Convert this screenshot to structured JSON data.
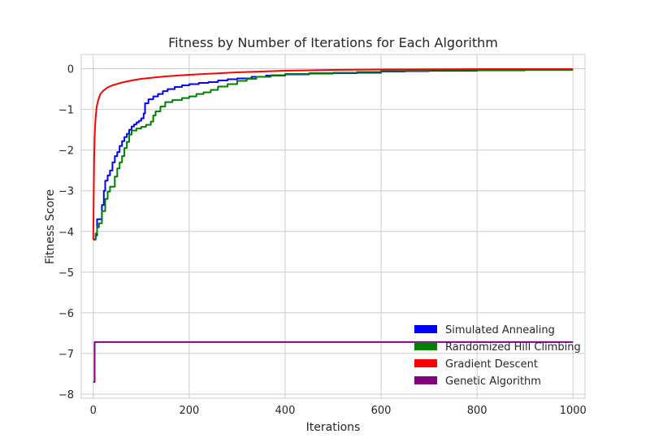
{
  "chart_data": {
    "type": "line",
    "title": "Fitness by Number of Iterations for Each Algorithm",
    "xlabel": "Iterations",
    "ylabel": "Fitness Score",
    "xlim": [
      -25,
      1025
    ],
    "ylim": [
      -8.1,
      0.35
    ],
    "xticks": [
      0,
      200,
      400,
      600,
      800,
      1000
    ],
    "yticks": [
      0,
      -1,
      -2,
      -3,
      -4,
      -5,
      -6,
      -7,
      -8
    ],
    "xtick_labels": [
      "0",
      "200",
      "400",
      "600",
      "800",
      "1000"
    ],
    "ytick_labels": [
      "0",
      "−1",
      "−2",
      "−3",
      "−4",
      "−5",
      "−6",
      "−7",
      "−8"
    ],
    "grid": true,
    "legend_position": "lower-right",
    "series": [
      {
        "name": "Simulated Annealing",
        "color": "#0000ff",
        "step": true,
        "points": [
          [
            0,
            -4.2
          ],
          [
            5,
            -4.1
          ],
          [
            8,
            -3.7
          ],
          [
            15,
            -3.7
          ],
          [
            18,
            -3.35
          ],
          [
            22,
            -3.0
          ],
          [
            25,
            -2.75
          ],
          [
            30,
            -2.62
          ],
          [
            35,
            -2.5
          ],
          [
            40,
            -2.3
          ],
          [
            45,
            -2.15
          ],
          [
            50,
            -2.05
          ],
          [
            55,
            -1.9
          ],
          [
            60,
            -1.78
          ],
          [
            65,
            -1.68
          ],
          [
            70,
            -1.6
          ],
          [
            75,
            -1.5
          ],
          [
            80,
            -1.42
          ],
          [
            85,
            -1.37
          ],
          [
            90,
            -1.32
          ],
          [
            95,
            -1.28
          ],
          [
            100,
            -1.22
          ],
          [
            105,
            -1.1
          ],
          [
            108,
            -0.85
          ],
          [
            115,
            -0.75
          ],
          [
            125,
            -0.68
          ],
          [
            135,
            -0.62
          ],
          [
            145,
            -0.55
          ],
          [
            155,
            -0.5
          ],
          [
            170,
            -0.45
          ],
          [
            185,
            -0.41
          ],
          [
            200,
            -0.38
          ],
          [
            220,
            -0.35
          ],
          [
            240,
            -0.33
          ],
          [
            260,
            -0.29
          ],
          [
            280,
            -0.26
          ],
          [
            300,
            -0.24
          ],
          [
            330,
            -0.2
          ],
          [
            360,
            -0.17
          ],
          [
            400,
            -0.14
          ],
          [
            450,
            -0.12
          ],
          [
            500,
            -0.11
          ],
          [
            550,
            -0.1
          ],
          [
            600,
            -0.07
          ],
          [
            650,
            -0.06
          ],
          [
            700,
            -0.05
          ],
          [
            800,
            -0.04
          ],
          [
            900,
            -0.03
          ],
          [
            1000,
            -0.03
          ]
        ]
      },
      {
        "name": "Randomized Hill Climbing",
        "color": "#008000",
        "step": true,
        "points": [
          [
            0,
            -4.2
          ],
          [
            5,
            -4.05
          ],
          [
            8,
            -3.9
          ],
          [
            12,
            -3.8
          ],
          [
            18,
            -3.5
          ],
          [
            25,
            -3.2
          ],
          [
            30,
            -3.02
          ],
          [
            35,
            -2.9
          ],
          [
            45,
            -2.65
          ],
          [
            50,
            -2.45
          ],
          [
            55,
            -2.3
          ],
          [
            60,
            -2.15
          ],
          [
            65,
            -1.95
          ],
          [
            70,
            -1.8
          ],
          [
            75,
            -1.62
          ],
          [
            80,
            -1.52
          ],
          [
            90,
            -1.47
          ],
          [
            100,
            -1.43
          ],
          [
            110,
            -1.38
          ],
          [
            120,
            -1.3
          ],
          [
            125,
            -1.15
          ],
          [
            130,
            -1.05
          ],
          [
            140,
            -0.93
          ],
          [
            150,
            -0.82
          ],
          [
            165,
            -0.77
          ],
          [
            185,
            -0.72
          ],
          [
            200,
            -0.68
          ],
          [
            215,
            -0.62
          ],
          [
            230,
            -0.58
          ],
          [
            245,
            -0.52
          ],
          [
            260,
            -0.44
          ],
          [
            280,
            -0.38
          ],
          [
            300,
            -0.3
          ],
          [
            320,
            -0.25
          ],
          [
            340,
            -0.2
          ],
          [
            370,
            -0.16
          ],
          [
            400,
            -0.13
          ],
          [
            450,
            -0.11
          ],
          [
            500,
            -0.1
          ],
          [
            550,
            -0.08
          ],
          [
            600,
            -0.06
          ],
          [
            650,
            -0.05
          ],
          [
            700,
            -0.03
          ],
          [
            800,
            -0.03
          ],
          [
            900,
            -0.03
          ],
          [
            1000,
            -0.03
          ]
        ]
      },
      {
        "name": "Gradient Descent",
        "color": "#ff0000",
        "step": false,
        "points": [
          [
            0,
            -4.2
          ],
          [
            1,
            -3.0
          ],
          [
            2,
            -2.2
          ],
          [
            3,
            -1.7
          ],
          [
            4,
            -1.4
          ],
          [
            5,
            -1.2
          ],
          [
            7,
            -0.95
          ],
          [
            10,
            -0.78
          ],
          [
            15,
            -0.62
          ],
          [
            20,
            -0.55
          ],
          [
            30,
            -0.46
          ],
          [
            40,
            -0.41
          ],
          [
            60,
            -0.34
          ],
          [
            80,
            -0.29
          ],
          [
            100,
            -0.25
          ],
          [
            150,
            -0.19
          ],
          [
            200,
            -0.15
          ],
          [
            300,
            -0.09
          ],
          [
            400,
            -0.05
          ],
          [
            500,
            -0.03
          ],
          [
            600,
            -0.02
          ],
          [
            800,
            -0.01
          ],
          [
            1000,
            -0.01
          ]
        ]
      },
      {
        "name": "Genetic Algorithm",
        "color": "#800080",
        "step": true,
        "points": [
          [
            0,
            -7.7
          ],
          [
            3,
            -6.72
          ],
          [
            1000,
            -6.72
          ]
        ]
      }
    ]
  }
}
